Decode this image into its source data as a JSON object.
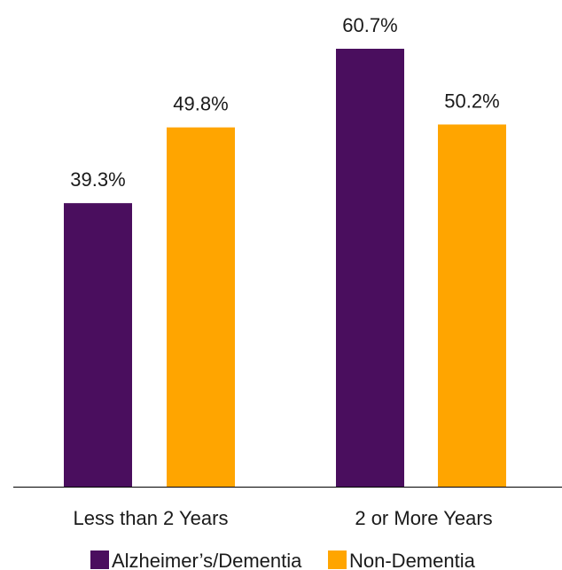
{
  "chart_data": {
    "type": "bar",
    "categories": [
      "Less than 2 Years",
      "2 or More Years"
    ],
    "series": [
      {
        "name": "Alzheimer’s/Dementia",
        "values": [
          39.3,
          60.7
        ],
        "labels": [
          "39.3%",
          "60.7%"
        ],
        "color": "#4a0e5e"
      },
      {
        "name": "Non-Dementia",
        "values": [
          49.8,
          50.2
        ],
        "labels": [
          "49.8%",
          "50.2%"
        ],
        "color": "#ffa500"
      }
    ],
    "ylim": [
      0,
      70
    ],
    "unit": "%",
    "grid": false,
    "legend": "bottom",
    "axis_color": "#000000"
  }
}
